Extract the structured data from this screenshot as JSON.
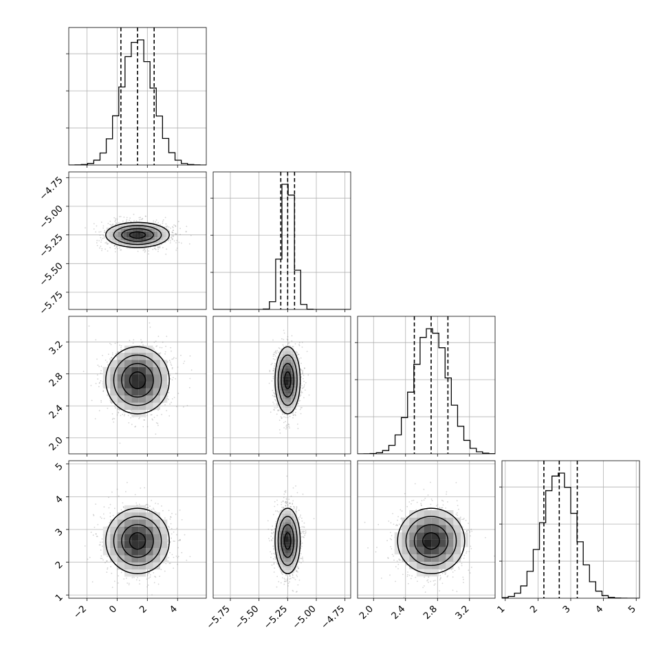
{
  "chart_data": {
    "type": "corner",
    "title": "",
    "grid": true,
    "parameters": [
      {
        "name": "",
        "range": [
          -3.2,
          5.9
        ],
        "ticks": [
          -2,
          0,
          2,
          4
        ],
        "tick_labels": [
          "−2",
          "0",
          "2",
          "4"
        ],
        "mean": 1.35,
        "sd": 1.05,
        "quantiles": [
          0.25,
          1.35,
          2.45
        ]
      },
      {
        "name": "",
        "range": [
          -5.9,
          -4.7
        ],
        "ticks": [
          -5.75,
          -5.5,
          -5.25,
          -5.0,
          -4.75
        ],
        "tick_labels": [
          "−5.75",
          "−5.50",
          "−5.25",
          "−5.00",
          "−4.75"
        ],
        "mean": -5.25,
        "sd": 0.055,
        "quantiles": [
          -5.31,
          -5.25,
          -5.19
        ]
      },
      {
        "name": "",
        "range": [
          1.8,
          3.52
        ],
        "ticks": [
          2.0,
          2.4,
          2.8,
          3.2
        ],
        "tick_labels": [
          "2.0",
          "2.4",
          "2.8",
          "3.2"
        ],
        "mean": 2.72,
        "sd": 0.21,
        "quantiles": [
          2.51,
          2.72,
          2.93
        ]
      },
      {
        "name": "",
        "range": [
          0.9,
          5.1
        ],
        "ticks": [
          1,
          2,
          3,
          4,
          5
        ],
        "tick_labels": [
          "1",
          "2",
          "3",
          "4",
          "5"
        ],
        "mean": 2.65,
        "sd": 0.5,
        "quantiles": [
          2.18,
          2.65,
          3.2
        ]
      }
    ],
    "colors": {
      "frame": "#000000",
      "grid": "#b0b0b0",
      "points": "#808080"
    }
  }
}
